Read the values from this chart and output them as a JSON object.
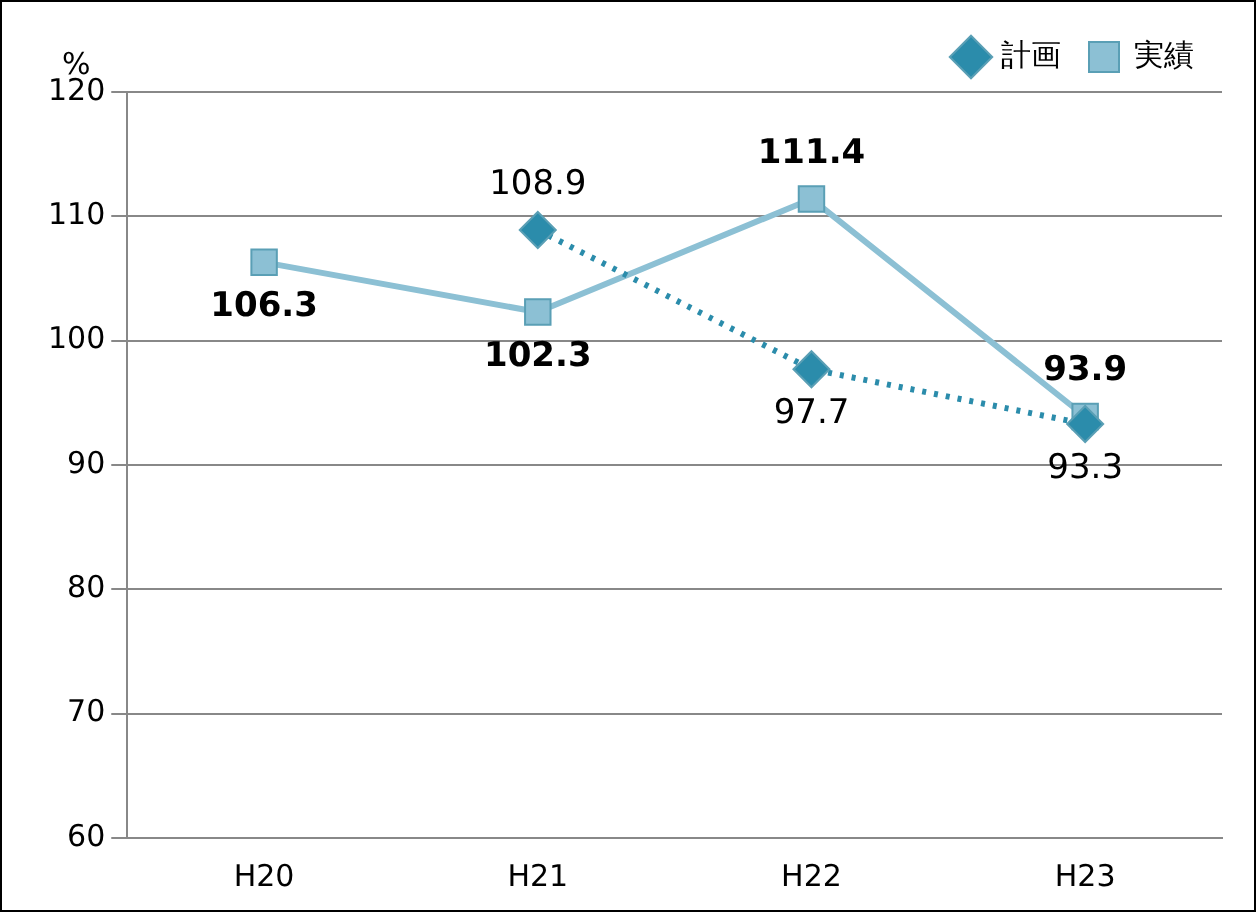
{
  "chart_data": {
    "type": "line",
    "ylabel": "%",
    "categories": [
      "H20",
      "H21",
      "H22",
      "H23"
    ],
    "series": [
      {
        "name": "計画",
        "color": "#2b8cab",
        "values": [
          null,
          108.9,
          97.7,
          93.3
        ],
        "marker": "diamond",
        "line_style": "dotted"
      },
      {
        "name": "実績",
        "color": "#8cc0d4",
        "values": [
          106.3,
          102.3,
          111.4,
          93.9
        ],
        "marker": "square",
        "line_style": "solid"
      }
    ],
    "ylim": [
      60,
      120
    ],
    "yticks": [
      60,
      70,
      80,
      90,
      100,
      110,
      120
    ],
    "grid": "y",
    "legend": "top right",
    "data_labels": true
  }
}
